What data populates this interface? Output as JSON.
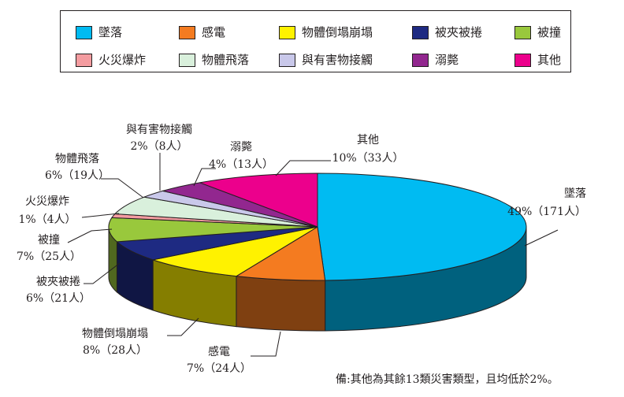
{
  "chart_data": {
    "type": "pie",
    "title": "",
    "style": "3d",
    "legend_position": "top",
    "slices": [
      {
        "label": "墜落",
        "percent": "49%",
        "count": "（171人）",
        "value": 171,
        "color": "#00bbf2"
      },
      {
        "label": "感電",
        "percent": "7%",
        "count": "（24人）",
        "value": 24,
        "color": "#f47b20"
      },
      {
        "label": "物體倒塌崩塌",
        "percent": "8%",
        "count": "（28人）",
        "value": 28,
        "color": "#fff200"
      },
      {
        "label": "被夾被捲",
        "percent": "6%",
        "count": "（21人）",
        "value": 21,
        "color": "#1e2a82"
      },
      {
        "label": "被撞",
        "percent": "7%",
        "count": "（25人）",
        "value": 25,
        "color": "#99c83c"
      },
      {
        "label": "火災爆炸",
        "percent": "1%",
        "count": "（4人）",
        "value": 4,
        "color": "#f49ca0"
      },
      {
        "label": "物體飛落",
        "percent": "6%",
        "count": "（19人）",
        "value": 19,
        "color": "#d9f0dc"
      },
      {
        "label": "與有害物接觸",
        "percent": "2%",
        "count": "（8人）",
        "value": 8,
        "color": "#c9c8ea"
      },
      {
        "label": "溺斃",
        "percent": "4%",
        "count": "（13人）",
        "value": 13,
        "color": "#92278f"
      },
      {
        "label": "其他",
        "percent": "10%",
        "count": "（33人）",
        "value": 33,
        "color": "#ec008c"
      }
    ],
    "legend": [
      {
        "label": "墜落",
        "color": "#00bbf2"
      },
      {
        "label": "感電",
        "color": "#f47b20"
      },
      {
        "label": "物體倒塌崩塌",
        "color": "#fff200"
      },
      {
        "label": "被夾被捲",
        "color": "#1e2a82"
      },
      {
        "label": "被撞",
        "color": "#99c83c"
      },
      {
        "label": "火災爆炸",
        "color": "#f49ca0"
      },
      {
        "label": "物體飛落",
        "color": "#d9f0dc"
      },
      {
        "label": "與有害物接觸",
        "color": "#c9c8ea"
      },
      {
        "label": "溺斃",
        "color": "#92278f"
      },
      {
        "label": "其他",
        "color": "#ec008c"
      }
    ]
  },
  "footnote": "備:其他為其餘13類災害類型，且均低於2%。"
}
